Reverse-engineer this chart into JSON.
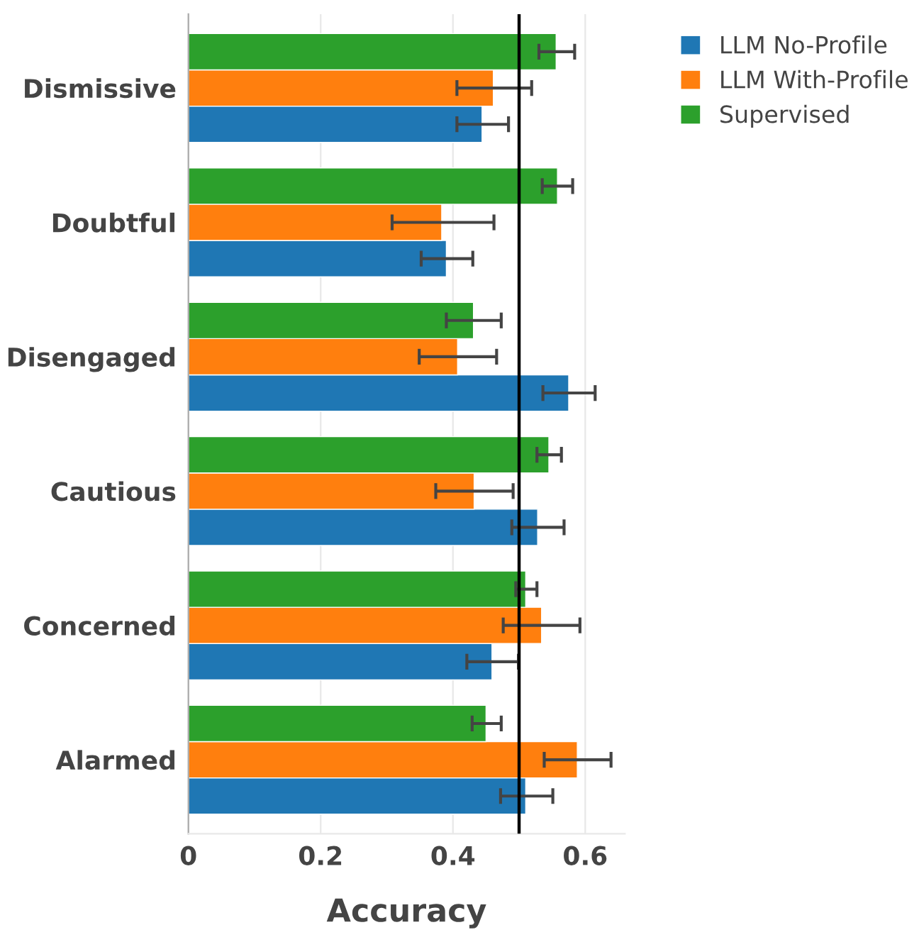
{
  "chart_data": {
    "type": "bar",
    "orientation": "horizontal",
    "xlabel": "Accuracy",
    "categories": [
      "Dismissive",
      "Doubtful",
      "Disengaged",
      "Cautious",
      "Concerned",
      "Alarmed"
    ],
    "series": [
      {
        "name": "LLM No-Profile",
        "color": "#1f77b4",
        "values": [
          0.444,
          0.39,
          0.575,
          0.528,
          0.459,
          0.51
        ],
        "errors": [
          [
            0.406,
            0.484
          ],
          [
            0.352,
            0.43
          ],
          [
            0.536,
            0.615
          ],
          [
            0.489,
            0.568
          ],
          [
            0.421,
            0.499
          ],
          [
            0.472,
            0.551
          ]
        ]
      },
      {
        "name": "LLM With-Profile",
        "color": "#ff7f0e",
        "values": [
          0.461,
          0.383,
          0.407,
          0.432,
          0.534,
          0.588
        ],
        "errors": [
          [
            0.406,
            0.519
          ],
          [
            0.308,
            0.462
          ],
          [
            0.349,
            0.466
          ],
          [
            0.374,
            0.491
          ],
          [
            0.476,
            0.592
          ],
          [
            0.538,
            0.639
          ]
        ]
      },
      {
        "name": "Supervised",
        "color": "#2ca02c",
        "values": [
          0.556,
          0.558,
          0.431,
          0.545,
          0.51,
          0.45
        ],
        "errors": [
          [
            0.53,
            0.584
          ],
          [
            0.535,
            0.581
          ],
          [
            0.39,
            0.473
          ],
          [
            0.527,
            0.564
          ],
          [
            0.495,
            0.527
          ],
          [
            0.429,
            0.473
          ]
        ]
      }
    ],
    "xlim": [
      0,
      0.66
    ],
    "xticks": [
      0,
      0.2,
      0.4,
      0.6
    ],
    "grid": "x",
    "legend": "top right",
    "ref_lines": [
      {
        "axis": "x",
        "value": 0.5,
        "color": "#000000"
      }
    ]
  }
}
